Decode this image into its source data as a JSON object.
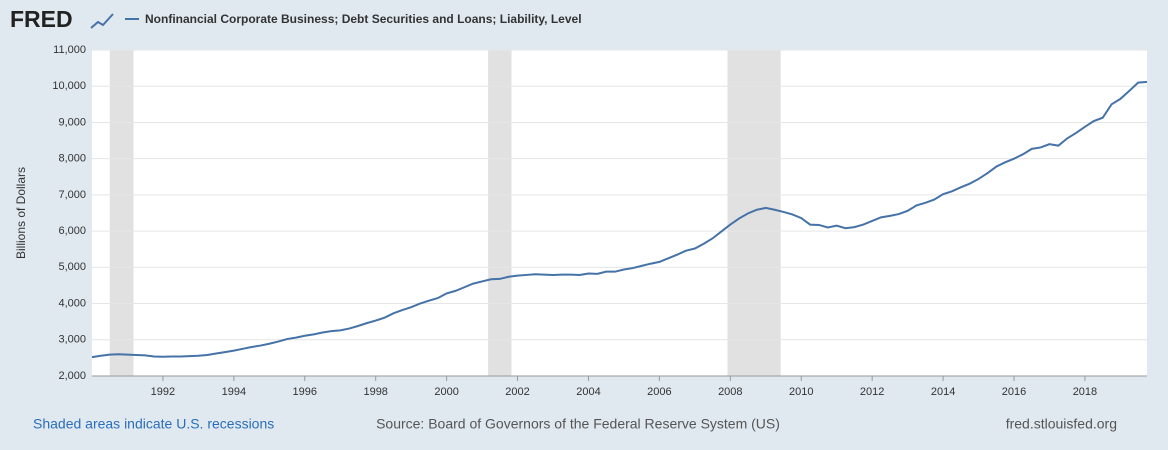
{
  "brand": "FRED",
  "chart_data": {
    "type": "line",
    "title": "Nonfinancial Corporate Business; Debt Securities and Loans; Liability, Level",
    "y_label": "Billions of Dollars",
    "note": "Shaded areas indicate U.S. recessions",
    "source": "Source: Board of Governors of the Federal Reserve System (US)",
    "site": "fred.stlouisfed.org",
    "recessions": [
      [
        1990.5,
        1991.17
      ],
      [
        2001.17,
        2001.83
      ],
      [
        2007.92,
        2009.42
      ]
    ],
    "recession_color": "#e1e1e1",
    "x": [
      1990,
      1990.25,
      1990.5,
      1990.75,
      1991,
      1991.25,
      1991.5,
      1991.75,
      1992,
      1992.25,
      1992.5,
      1992.75,
      1993,
      1993.25,
      1993.5,
      1993.75,
      1994,
      1994.25,
      1994.5,
      1994.75,
      1995,
      1995.25,
      1995.5,
      1995.75,
      1996,
      1996.25,
      1996.5,
      1996.75,
      1997,
      1997.25,
      1997.5,
      1997.75,
      1998,
      1998.25,
      1998.5,
      1998.75,
      1999,
      1999.25,
      1999.5,
      1999.75,
      2000,
      2000.25,
      2000.5,
      2000.75,
      2001,
      2001.25,
      2001.5,
      2001.75,
      2002,
      2002.25,
      2002.5,
      2002.75,
      2003,
      2003.25,
      2003.5,
      2003.75,
      2004,
      2004.25,
      2004.5,
      2004.75,
      2005,
      2005.25,
      2005.5,
      2005.75,
      2006,
      2006.25,
      2006.5,
      2006.75,
      2007,
      2007.25,
      2007.5,
      2007.75,
      2008,
      2008.25,
      2008.5,
      2008.75,
      2009,
      2009.25,
      2009.5,
      2009.75,
      2010,
      2010.25,
      2010.5,
      2010.75,
      2011,
      2011.25,
      2011.5,
      2011.75,
      2012,
      2012.25,
      2012.5,
      2012.75,
      2013,
      2013.25,
      2013.5,
      2013.75,
      2014,
      2014.25,
      2014.5,
      2014.75,
      2015,
      2015.25,
      2015.5,
      2015.75,
      2016,
      2016.25,
      2016.5,
      2016.75,
      2017,
      2017.25,
      2017.5,
      2017.75,
      2018,
      2018.25,
      2018.5,
      2018.75,
      2019,
      2019.25,
      2019.5,
      2019.75
    ],
    "series": [
      {
        "name": "Nonfinancial Corporate Business; Debt Securities and Loans; Liability, Level",
        "color": "#4572a7",
        "values": [
          2520,
          2560,
          2590,
          2600,
          2590,
          2580,
          2570,
          2540,
          2530,
          2540,
          2540,
          2550,
          2560,
          2580,
          2620,
          2660,
          2700,
          2750,
          2800,
          2840,
          2890,
          2950,
          3020,
          3060,
          3110,
          3150,
          3200,
          3240,
          3260,
          3310,
          3380,
          3460,
          3530,
          3610,
          3730,
          3820,
          3900,
          4000,
          4080,
          4150,
          4280,
          4350,
          4450,
          4550,
          4610,
          4670,
          4680,
          4740,
          4770,
          4790,
          4810,
          4800,
          4790,
          4800,
          4800,
          4790,
          4830,
          4820,
          4880,
          4880,
          4940,
          4980,
          5040,
          5100,
          5150,
          5250,
          5350,
          5460,
          5520,
          5650,
          5800,
          5990,
          6180,
          6350,
          6490,
          6590,
          6640,
          6590,
          6530,
          6460,
          6360,
          6180,
          6170,
          6100,
          6150,
          6080,
          6110,
          6180,
          6280,
          6380,
          6420,
          6470,
          6560,
          6710,
          6780,
          6870,
          7020,
          7100,
          7210,
          7310,
          7440,
          7600,
          7780,
          7900,
          8000,
          8120,
          8270,
          8310,
          8400,
          8360,
          8560,
          8710,
          8880,
          9040,
          9130,
          9500,
          9650,
          9870,
          10100,
          10120
        ]
      }
    ],
    "xlim": [
      1990,
      2019.75
    ],
    "xticks": [
      1992,
      1994,
      1996,
      1998,
      2000,
      2002,
      2004,
      2006,
      2008,
      2010,
      2012,
      2014,
      2016,
      2018
    ],
    "ylim": [
      2000,
      11000
    ],
    "yticks": [
      {
        "value": 2000,
        "label": "2,000"
      },
      {
        "value": 3000,
        "label": "3,000"
      },
      {
        "value": 4000,
        "label": "4,000"
      },
      {
        "value": 5000,
        "label": "5,000"
      },
      {
        "value": 6000,
        "label": "6,000"
      },
      {
        "value": 7000,
        "label": "7,000"
      },
      {
        "value": 8000,
        "label": "8,000"
      },
      {
        "value": 9000,
        "label": "9,000"
      },
      {
        "value": 10000,
        "label": "10,000"
      },
      {
        "value": 11000,
        "label": "11,000"
      }
    ],
    "grid": true
  }
}
